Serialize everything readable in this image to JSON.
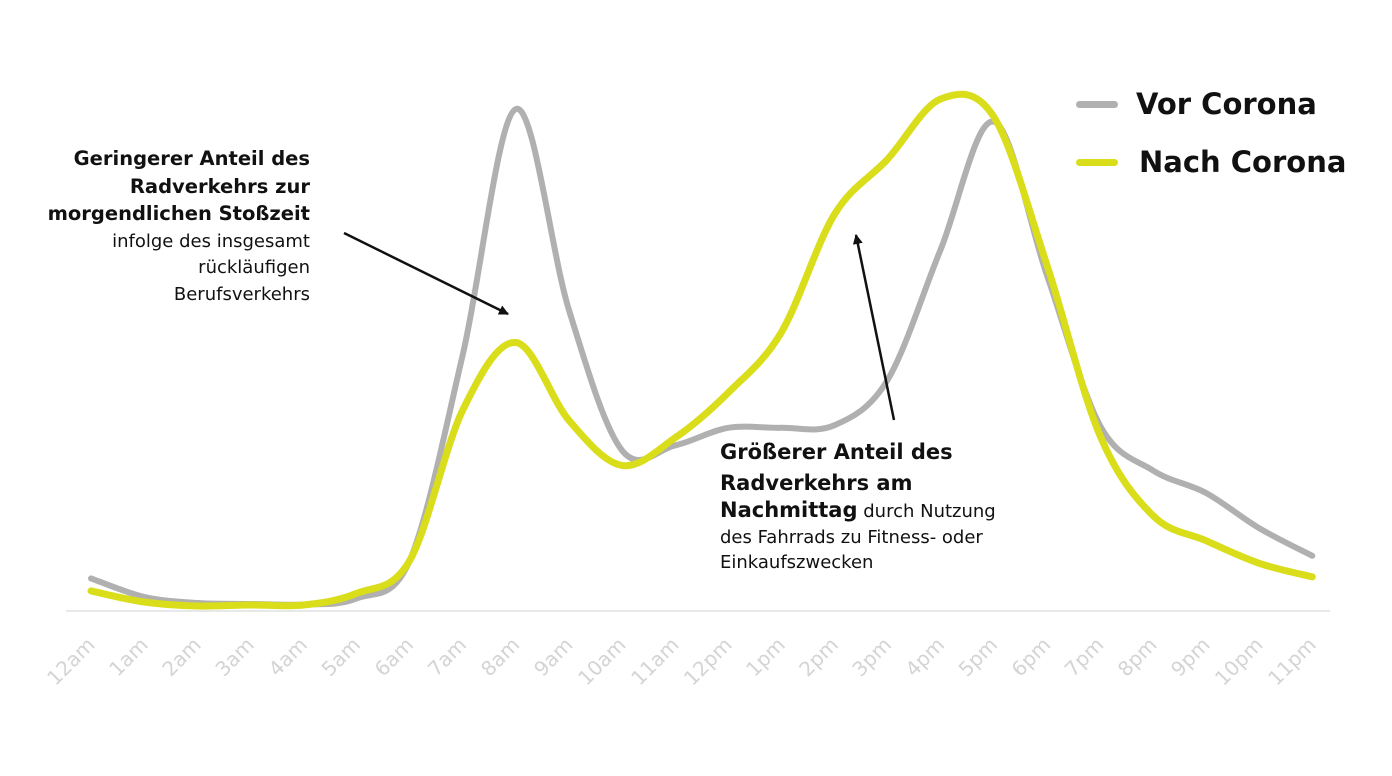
{
  "chart_data": {
    "type": "line",
    "categories": [
      "12am",
      "1am",
      "2am",
      "3am",
      "4am",
      "5am",
      "6am",
      "7am",
      "8am",
      "9am",
      "10am",
      "11am",
      "12pm",
      "1pm",
      "2pm",
      "3pm",
      "4pm",
      "5pm",
      "6pm",
      "7pm",
      "8pm",
      "9pm",
      "10pm",
      "11pm"
    ],
    "series": [
      {
        "name": "Vor Corona",
        "color": "#b0b0b0",
        "values": [
          6.5,
          2.8,
          1.6,
          1.4,
          1.3,
          2.5,
          10,
          51,
          100,
          60,
          32,
          33,
          36.5,
          36.5,
          37,
          46,
          72,
          97.5,
          67,
          37,
          28,
          23.5,
          16.5,
          11
        ]
      },
      {
        "name": "Nach Corona",
        "color": "#d9dd1a",
        "values": [
          4,
          1.8,
          1.0,
          1.2,
          1.2,
          3.5,
          10,
          40,
          53.5,
          38,
          29,
          34.5,
          43.5,
          55.5,
          79,
          90,
          102,
          98.5,
          69,
          35,
          19,
          14,
          9.5,
          6.8
        ]
      }
    ],
    "ylim": [
      0,
      105
    ],
    "grid": false,
    "legend": "top-right",
    "annotations": {
      "morning": {
        "bold_lines": [
          "Geringerer Anteil des",
          "Radverkehrs zur",
          "morgendlichen Stoßzeit"
        ],
        "normal_lines": [
          "infolge des insgesamt",
          "rückläufigen",
          "Berufsverkehrs"
        ]
      },
      "afternoon": {
        "bold_lines": [
          "Größerer Anteil des",
          "Radverkehrs am"
        ],
        "bold_inline": "Nachmittag",
        "normal_inline": " durch Nutzung",
        "normal_lines": [
          "des Fahrrads zu Fitness- oder",
          "Einkaufszwecken"
        ]
      }
    }
  },
  "colors": {
    "axis": "#e8e8e8",
    "ticks": "#d4d4d4",
    "text": "#111111"
  }
}
